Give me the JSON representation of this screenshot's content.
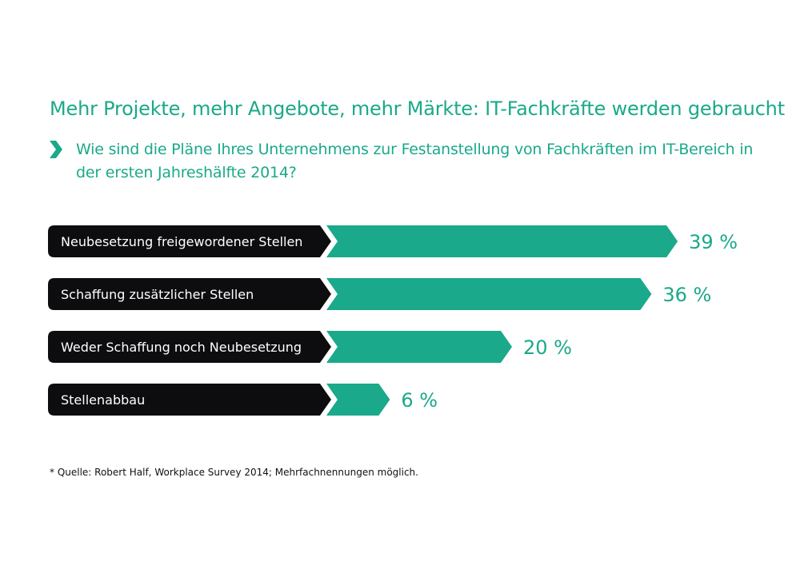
{
  "title": "Mehr Projekte, mehr Angebote, mehr Märkte: IT-Fachkräfte werden gebraucht",
  "subtitle": "Wie sind die Pläne Ihres Unternehmens zur Festanstellung von Fachkräften im IT-Bereich in der ersten Jahreshälfte 2014?",
  "chevron_icon": "chevron-right-icon",
  "footnote": "* Quelle: Robert Half, Workplace Survey 2014; Mehrfachnennungen möglich.",
  "colors": {
    "accent": "#1aa98a",
    "label_bg": "#0d0d0f",
    "label_text": "#ffffff"
  },
  "chart_data": {
    "type": "bar",
    "orientation": "horizontal",
    "categories": [
      "Neubesetzung freigewordener Stellen",
      "Schaffung zusätzlicher Stellen",
      "Weder Schaffung noch Neubesetzung",
      "Stellenabbau"
    ],
    "values": [
      39,
      36,
      20,
      6
    ],
    "value_labels": [
      "39 %",
      "36 %",
      "20 %",
      "6 %"
    ],
    "unit": "%"
  }
}
